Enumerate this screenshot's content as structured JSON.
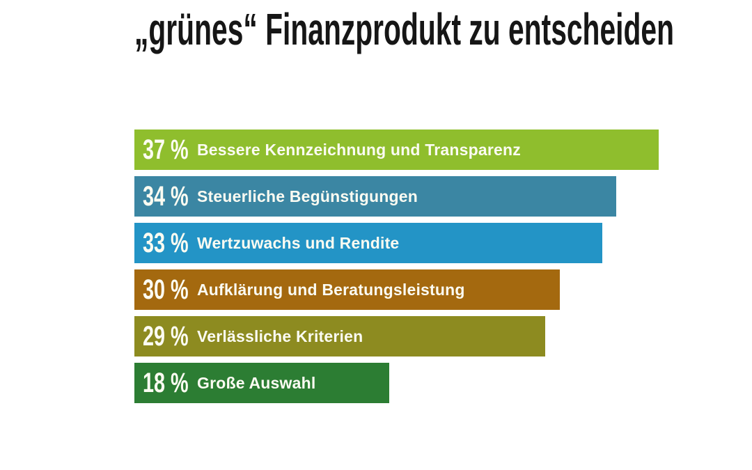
{
  "title": "„grünes“ Finanzprodukt zu entscheiden",
  "chart_data": {
    "type": "bar",
    "orientation": "horizontal",
    "title": "„grünes“ Finanzprodukt zu entscheiden",
    "value_unit": "%",
    "xlim": [
      0,
      37
    ],
    "grid": false,
    "legend": false,
    "background": "#FFFFFF",
    "bar_text_color": "#FCFCF2",
    "categories": [
      "Bessere Kennzeichnung und Transparenz",
      "Steuerliche Begünstigungen",
      "Wertzuwachs und Rendite",
      "Aufklärung und Beratungsleistung",
      "Verlässliche Kriterien",
      "Große Auswahl"
    ],
    "values": [
      37,
      34,
      33,
      30,
      29,
      18
    ],
    "bars": [
      {
        "value": 37,
        "value_label": "37 %",
        "label": "Bessere Kennzeichnung und Transparenz",
        "color": "#8FBE2D"
      },
      {
        "value": 34,
        "value_label": "34 %",
        "label": "Steuerliche Begünstigungen",
        "color": "#3B86A3"
      },
      {
        "value": 33,
        "value_label": "33 %",
        "label": "Wertzuwachs und Rendite",
        "color": "#2394C6"
      },
      {
        "value": 30,
        "value_label": "30 %",
        "label": "Aufklärung und Beratungsleistung",
        "color": "#A4690F"
      },
      {
        "value": 29,
        "value_label": "29 %",
        "label": "Verlässliche Kriterien",
        "color": "#8D8B20"
      },
      {
        "value": 18,
        "value_label": "18 %",
        "label": "Große Auswahl",
        "color": "#2C7D33"
      }
    ]
  }
}
